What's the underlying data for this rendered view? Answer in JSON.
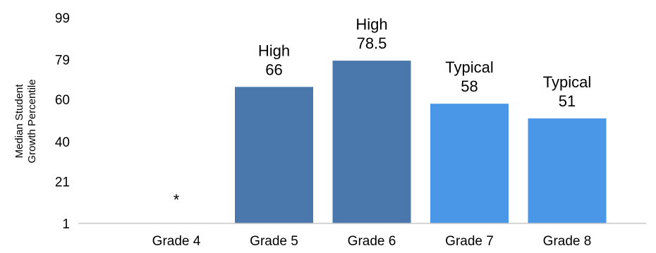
{
  "chart_data": {
    "type": "bar",
    "categories": [
      "Grade 4",
      "Grade 5",
      "Grade 6",
      "Grade 7",
      "Grade 8"
    ],
    "values": [
      null,
      66,
      78.5,
      58,
      51
    ],
    "ratings": [
      "",
      "High",
      "High",
      "Typical",
      "Typical"
    ],
    "value_labels": [
      "*",
      "66",
      "78.5",
      "58",
      "51"
    ],
    "ylabel_lines": [
      "Median Student",
      "Growth Percentile"
    ],
    "yticks": [
      1,
      21,
      40,
      60,
      79,
      99
    ],
    "ylim": [
      1,
      99
    ],
    "grid": false,
    "legend": "none",
    "colors": [
      "#4a78ad",
      "#4a78ad",
      "#4a78ad",
      "#4a97e8",
      "#4a97e8"
    ]
  }
}
